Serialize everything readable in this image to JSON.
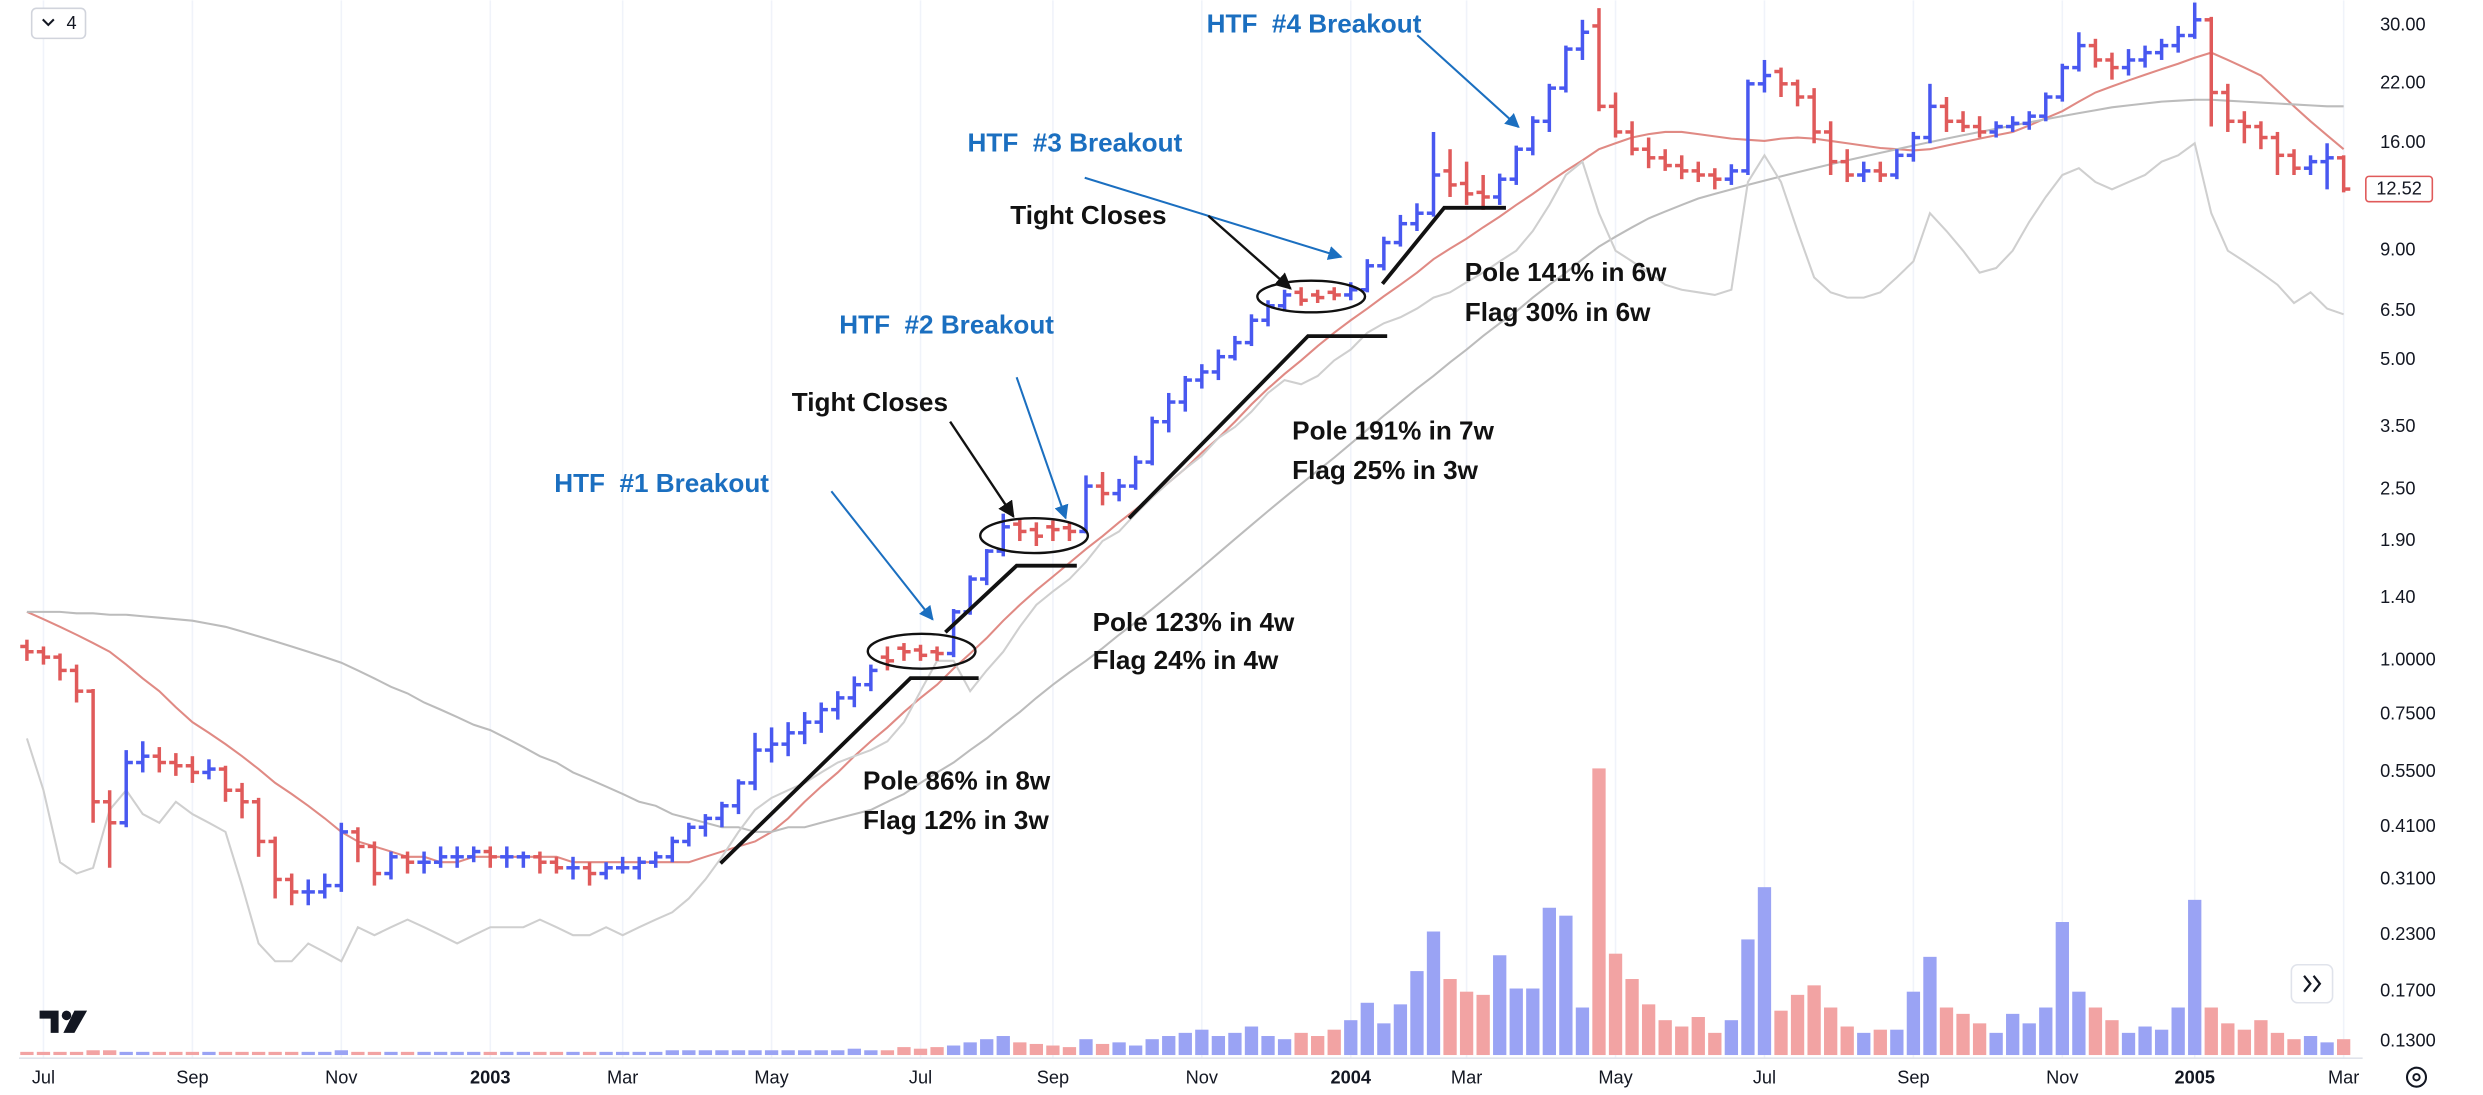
{
  "toolbar": {
    "interval": "4"
  },
  "chart_data": {
    "type": "ohlc",
    "categories": [
      null,
      "Jul",
      null,
      null,
      null,
      null,
      null,
      null,
      null,
      null,
      "Sep",
      null,
      null,
      null,
      null,
      null,
      null,
      null,
      null,
      "Nov",
      null,
      null,
      null,
      null,
      null,
      null,
      null,
      null,
      "2003",
      null,
      null,
      null,
      null,
      null,
      null,
      null,
      "Mar",
      null,
      null,
      null,
      null,
      null,
      null,
      null,
      null,
      "May",
      null,
      null,
      null,
      null,
      null,
      null,
      null,
      null,
      "Jul",
      null,
      null,
      null,
      null,
      null,
      null,
      null,
      "Sep",
      null,
      null,
      null,
      null,
      null,
      null,
      null,
      null,
      "Nov",
      null,
      null,
      null,
      null,
      null,
      null,
      null,
      null,
      "2004",
      null,
      null,
      null,
      null,
      null,
      null,
      "Mar",
      null,
      null,
      null,
      null,
      null,
      null,
      null,
      null,
      "May",
      null,
      null,
      null,
      null,
      null,
      null,
      null,
      null,
      "Jul",
      null,
      null,
      null,
      null,
      null,
      null,
      null,
      null,
      "Sep",
      null,
      null,
      null,
      null,
      null,
      null,
      null,
      null,
      "Nov",
      null,
      null,
      null,
      null,
      null,
      null,
      null,
      "2005",
      null,
      null,
      null,
      null,
      null,
      null,
      null,
      null,
      "Mar"
    ],
    "open": [
      1.08,
      1.05,
      1.02,
      0.95,
      0.85,
      0.47,
      0.42,
      0.58,
      0.6,
      0.58,
      0.57,
      0.55,
      0.56,
      0.5,
      0.47,
      0.38,
      0.31,
      0.29,
      0.29,
      0.3,
      0.4,
      0.37,
      0.32,
      0.35,
      0.34,
      0.34,
      0.35,
      0.35,
      0.36,
      0.35,
      0.35,
      0.35,
      0.34,
      0.33,
      0.33,
      0.32,
      0.33,
      0.33,
      0.34,
      0.35,
      0.38,
      0.41,
      0.43,
      0.46,
      0.52,
      0.62,
      0.64,
      0.68,
      0.72,
      0.77,
      0.82,
      0.88,
      1.02,
      1.07,
      1.06,
      1.05,
      1.04,
      1.3,
      1.55,
      1.8,
      2.08,
      2.02,
      2.05,
      2.04,
      2.0,
      2.55,
      2.45,
      2.55,
      2.9,
      3.6,
      4.0,
      4.5,
      4.7,
      5.1,
      5.5,
      6.2,
      6.7,
      7.2,
      7.1,
      7.2,
      7.1,
      7.3,
      8.3,
      9.4,
      10.4,
      11.0,
      13.8,
      12.9,
      12.3,
      12.0,
      13.2,
      15.5,
      18.0,
      21.5,
      26.5,
      30.0,
      19.5,
      17.0,
      15.5,
      14.8,
      14.2,
      13.8,
      13.5,
      13.2,
      13.8,
      22.0,
      23.5,
      22.0,
      20.5,
      17.0,
      14.5,
      13.5,
      13.8,
      13.5,
      15.0,
      16.5,
      19.5,
      18.0,
      17.5,
      17.0,
      17.5,
      17.8,
      18.5,
      20.5,
      24.0,
      27.0,
      25.0,
      24.0,
      25.0,
      26.0,
      27.0,
      28.5,
      31.0,
      21.0,
      18.0,
      17.5,
      16.5,
      15.0,
      14.0,
      14.5,
      14.8
    ],
    "high": [
      1.12,
      1.08,
      1.04,
      0.98,
      0.86,
      0.5,
      0.62,
      0.65,
      0.63,
      0.61,
      0.6,
      0.59,
      0.57,
      0.52,
      0.48,
      0.39,
      0.32,
      0.31,
      0.32,
      0.42,
      0.41,
      0.38,
      0.36,
      0.36,
      0.36,
      0.37,
      0.37,
      0.37,
      0.37,
      0.37,
      0.36,
      0.36,
      0.35,
      0.35,
      0.34,
      0.34,
      0.35,
      0.35,
      0.36,
      0.39,
      0.42,
      0.44,
      0.47,
      0.53,
      0.68,
      0.7,
      0.72,
      0.76,
      0.8,
      0.85,
      0.92,
      0.98,
      1.08,
      1.1,
      1.09,
      1.08,
      1.32,
      1.58,
      1.82,
      2.2,
      2.15,
      2.1,
      2.12,
      2.1,
      2.7,
      2.75,
      2.65,
      3.0,
      3.7,
      4.2,
      4.6,
      4.9,
      5.3,
      5.7,
      6.4,
      6.9,
      7.3,
      7.4,
      7.3,
      7.4,
      7.6,
      8.6,
      9.7,
      10.9,
      11.6,
      17.0,
      15.5,
      14.5,
      13.5,
      13.6,
      15.8,
      18.5,
      22.0,
      27.0,
      31.0,
      33.0,
      21.0,
      18.0,
      16.5,
      15.5,
      15.0,
      14.5,
      14.0,
      14.3,
      22.5,
      25.0,
      24.0,
      22.5,
      21.5,
      18.0,
      15.5,
      14.5,
      14.5,
      15.5,
      17.0,
      22.0,
      20.5,
      19.0,
      18.5,
      18.0,
      18.5,
      19.0,
      21.0,
      24.5,
      29.0,
      28.0,
      26.0,
      26.5,
      27.0,
      28.0,
      30.0,
      34.0,
      31.5,
      22.0,
      19.0,
      18.0,
      17.0,
      15.5,
      15.0,
      16.0,
      15.0
    ],
    "low": [
      1.0,
      0.98,
      0.9,
      0.8,
      0.42,
      0.33,
      0.41,
      0.55,
      0.55,
      0.54,
      0.52,
      0.53,
      0.47,
      0.43,
      0.35,
      0.28,
      0.27,
      0.27,
      0.28,
      0.29,
      0.34,
      0.3,
      0.31,
      0.32,
      0.32,
      0.33,
      0.33,
      0.34,
      0.33,
      0.33,
      0.33,
      0.32,
      0.32,
      0.31,
      0.3,
      0.31,
      0.32,
      0.31,
      0.33,
      0.34,
      0.37,
      0.39,
      0.41,
      0.44,
      0.5,
      0.58,
      0.6,
      0.64,
      0.68,
      0.73,
      0.78,
      0.85,
      0.95,
      1.0,
      1.0,
      1.0,
      1.02,
      1.28,
      1.5,
      1.75,
      1.9,
      1.85,
      1.9,
      1.9,
      1.98,
      2.3,
      2.35,
      2.5,
      2.85,
      3.4,
      3.8,
      4.3,
      4.5,
      5.0,
      5.4,
      6.0,
      6.5,
      6.7,
      6.8,
      6.9,
      6.9,
      7.2,
      8.1,
      9.2,
      10.0,
      10.8,
      12.0,
      11.5,
      11.2,
      11.5,
      12.8,
      15.0,
      17.0,
      21.0,
      25.0,
      19.0,
      16.5,
      15.0,
      14.0,
      13.8,
      13.2,
      13.0,
      12.5,
      12.8,
      13.5,
      21.0,
      20.5,
      19.5,
      16.0,
      13.5,
      13.0,
      13.0,
      13.0,
      13.2,
      14.5,
      16.0,
      17.0,
      17.0,
      16.5,
      16.5,
      17.0,
      17.2,
      18.0,
      20.0,
      23.5,
      24.0,
      22.5,
      23.0,
      24.0,
      25.0,
      26.0,
      28.0,
      17.5,
      17.0,
      16.0,
      15.5,
      13.5,
      13.5,
      13.5,
      12.5,
      12.3
    ],
    "close": [
      1.05,
      1.02,
      0.95,
      0.85,
      0.47,
      0.42,
      0.58,
      0.6,
      0.58,
      0.57,
      0.55,
      0.56,
      0.5,
      0.47,
      0.38,
      0.31,
      0.29,
      0.29,
      0.3,
      0.4,
      0.37,
      0.32,
      0.35,
      0.34,
      0.34,
      0.35,
      0.35,
      0.36,
      0.35,
      0.35,
      0.35,
      0.34,
      0.33,
      0.33,
      0.32,
      0.33,
      0.33,
      0.34,
      0.35,
      0.38,
      0.41,
      0.43,
      0.46,
      0.52,
      0.62,
      0.64,
      0.68,
      0.72,
      0.77,
      0.82,
      0.88,
      0.95,
      1.0,
      1.05,
      1.03,
      1.04,
      1.3,
      1.55,
      1.8,
      2.05,
      2.0,
      1.95,
      2.02,
      2.0,
      2.55,
      2.45,
      2.55,
      2.9,
      3.6,
      4.0,
      4.5,
      4.7,
      5.1,
      5.5,
      6.2,
      6.7,
      7.1,
      6.9,
      7.0,
      7.1,
      7.3,
      8.3,
      9.4,
      10.4,
      11.0,
      13.5,
      12.8,
      12.2,
      12.0,
      13.2,
      15.5,
      18.0,
      21.5,
      26.5,
      29.0,
      19.5,
      17.0,
      15.5,
      14.8,
      14.2,
      13.8,
      13.5,
      13.2,
      13.8,
      22.0,
      23.0,
      22.0,
      20.5,
      17.0,
      14.5,
      13.5,
      13.8,
      13.5,
      15.0,
      16.5,
      19.5,
      18.0,
      17.5,
      17.0,
      17.5,
      17.8,
      18.5,
      20.5,
      24.0,
      27.0,
      25.0,
      24.0,
      25.0,
      26.0,
      27.0,
      28.5,
      31.0,
      21.0,
      18.0,
      17.5,
      16.5,
      15.0,
      14.0,
      14.5,
      14.8,
      12.52
    ],
    "up_color": "#4858f0",
    "down_color": "#e05a5a",
    "ylim": [
      0.119,
      34.4
    ],
    "log_scale": true,
    "grid": "x",
    "yticks": [
      {
        "value": 30,
        "label": "30.00"
      },
      {
        "value": 22,
        "label": "22.00"
      },
      {
        "value": 16,
        "label": "16.00"
      },
      {
        "value": 9,
        "label": "9.00"
      },
      {
        "value": 6.5,
        "label": "6.50"
      },
      {
        "value": 5,
        "label": "5.00"
      },
      {
        "value": 3.5,
        "label": "3.50"
      },
      {
        "value": 2.5,
        "label": "2.50"
      },
      {
        "value": 1.9,
        "label": "1.90"
      },
      {
        "value": 1.4,
        "label": "1.40"
      },
      {
        "value": 1,
        "label": "1.0000"
      },
      {
        "value": 0.75,
        "label": "0.7500"
      },
      {
        "value": 0.55,
        "label": "0.5500"
      },
      {
        "value": 0.41,
        "label": "0.4100"
      },
      {
        "value": 0.31,
        "label": "0.3100"
      },
      {
        "value": 0.23,
        "label": "0.2300"
      },
      {
        "value": 0.17,
        "label": "0.1700"
      },
      {
        "value": 0.13,
        "label": "0.1300"
      }
    ],
    "series": [
      {
        "color": "#e08a84",
        "values": [
          1.3,
          1.25,
          1.2,
          1.15,
          1.1,
          1.05,
          0.98,
          0.91,
          0.85,
          0.78,
          0.72,
          0.68,
          0.64,
          0.6,
          0.56,
          0.52,
          0.49,
          0.46,
          0.43,
          0.4,
          0.38,
          0.37,
          0.36,
          0.35,
          0.35,
          0.34,
          0.34,
          0.35,
          0.35,
          0.35,
          0.35,
          0.35,
          0.35,
          0.34,
          0.34,
          0.34,
          0.34,
          0.34,
          0.34,
          0.34,
          0.34,
          0.35,
          0.36,
          0.37,
          0.38,
          0.4,
          0.43,
          0.47,
          0.51,
          0.55,
          0.6,
          0.65,
          0.7,
          0.76,
          0.82,
          0.88,
          0.96,
          1.04,
          1.13,
          1.24,
          1.35,
          1.46,
          1.57,
          1.69,
          1.82,
          1.95,
          2.1,
          2.25,
          2.42,
          2.6,
          2.8,
          3.05,
          3.3,
          3.6,
          3.95,
          4.3,
          4.65,
          5.0,
          5.4,
          5.8,
          6.2,
          6.6,
          7.05,
          7.5,
          8.0,
          8.6,
          9.1,
          9.6,
          10.2,
          10.8,
          11.5,
          12.2,
          13.0,
          13.8,
          14.6,
          15.5,
          16.0,
          16.5,
          16.8,
          17.0,
          17.0,
          16.8,
          16.6,
          16.4,
          16.3,
          16.2,
          16.4,
          16.5,
          16.4,
          16.2,
          16.0,
          15.8,
          15.6,
          15.5,
          15.4,
          15.5,
          15.8,
          16.1,
          16.4,
          16.7,
          17.0,
          17.6,
          18.3,
          19.0,
          20.0,
          21.0,
          21.7,
          22.4,
          23.1,
          23.8,
          24.5,
          25.3,
          26.0,
          25.0,
          24.0,
          23.0,
          21.2,
          19.5,
          18.0,
          16.7,
          15.5
        ]
      },
      {
        "color": "#bcbcbc",
        "values": [
          1.3,
          1.3,
          1.3,
          1.29,
          1.29,
          1.28,
          1.28,
          1.27,
          1.26,
          1.25,
          1.24,
          1.22,
          1.2,
          1.17,
          1.14,
          1.11,
          1.08,
          1.05,
          1.02,
          0.99,
          0.95,
          0.91,
          0.87,
          0.84,
          0.8,
          0.77,
          0.74,
          0.71,
          0.69,
          0.66,
          0.63,
          0.6,
          0.58,
          0.55,
          0.53,
          0.51,
          0.49,
          0.47,
          0.46,
          0.44,
          0.43,
          0.42,
          0.41,
          0.41,
          0.4,
          0.4,
          0.41,
          0.41,
          0.42,
          0.43,
          0.44,
          0.45,
          0.47,
          0.49,
          0.52,
          0.55,
          0.58,
          0.62,
          0.66,
          0.71,
          0.76,
          0.82,
          0.88,
          0.94,
          1.0,
          1.07,
          1.15,
          1.23,
          1.32,
          1.42,
          1.53,
          1.65,
          1.78,
          1.92,
          2.07,
          2.23,
          2.4,
          2.58,
          2.77,
          2.97,
          3.2,
          3.45,
          3.72,
          4.0,
          4.3,
          4.6,
          4.95,
          5.3,
          5.7,
          6.1,
          6.5,
          7.0,
          7.5,
          8.0,
          8.6,
          9.2,
          9.7,
          10.2,
          10.7,
          11.1,
          11.5,
          11.9,
          12.2,
          12.5,
          12.8,
          13.1,
          13.4,
          13.7,
          14.0,
          14.3,
          14.6,
          14.9,
          15.2,
          15.5,
          15.8,
          16.1,
          16.4,
          16.7,
          17.0,
          17.3,
          17.6,
          17.9,
          18.2,
          18.5,
          18.8,
          19.1,
          19.4,
          19.6,
          19.8,
          20.0,
          20.1,
          20.2,
          20.2,
          20.1,
          20.0,
          19.9,
          19.8,
          19.7,
          19.6,
          19.5,
          19.5
        ]
      },
      {
        "color": "#cfcfcf",
        "values": [
          0.66,
          0.5,
          0.34,
          0.32,
          0.33,
          0.45,
          0.5,
          0.44,
          0.42,
          0.47,
          0.44,
          0.42,
          0.4,
          0.3,
          0.22,
          0.2,
          0.2,
          0.22,
          0.21,
          0.2,
          0.24,
          0.23,
          0.24,
          0.25,
          0.24,
          0.23,
          0.22,
          0.23,
          0.24,
          0.24,
          0.24,
          0.25,
          0.24,
          0.23,
          0.23,
          0.24,
          0.23,
          0.24,
          0.25,
          0.26,
          0.28,
          0.31,
          0.35,
          0.4,
          0.45,
          0.48,
          0.5,
          0.52,
          0.55,
          0.58,
          0.6,
          0.62,
          0.65,
          0.72,
          0.85,
          1.0,
          1.0,
          0.85,
          0.95,
          1.05,
          1.2,
          1.35,
          1.45,
          1.55,
          1.7,
          1.9,
          2.0,
          2.2,
          2.4,
          2.6,
          2.8,
          3.0,
          3.3,
          3.5,
          3.8,
          4.2,
          4.5,
          4.4,
          4.6,
          5.0,
          5.3,
          5.8,
          6.1,
          6.3,
          6.6,
          7.0,
          7.2,
          7.6,
          8.0,
          8.5,
          9.0,
          10.0,
          11.5,
          13.5,
          14.5,
          11.0,
          9.0,
          8.5,
          8.0,
          7.5,
          7.3,
          7.2,
          7.1,
          7.3,
          13.0,
          15.0,
          13.0,
          10.0,
          7.8,
          7.2,
          7.0,
          7.0,
          7.2,
          7.8,
          8.5,
          11.0,
          10.0,
          9.0,
          8.0,
          8.2,
          9.0,
          10.5,
          12.0,
          13.5,
          14.0,
          13.0,
          12.5,
          13.0,
          13.5,
          14.5,
          15.0,
          16.0,
          11.0,
          9.0,
          8.5,
          8.0,
          7.5,
          6.8,
          7.2,
          6.6,
          6.4
        ]
      }
    ],
    "volume": {
      "vlim": [
        0,
        200
      ],
      "up_color": "#9aa3f4",
      "down_color": "#f2a3a3",
      "values": [
        2,
        2,
        2,
        2,
        3,
        3,
        2,
        2,
        2,
        2,
        2,
        2,
        2,
        2,
        2,
        2,
        2,
        2,
        2,
        3,
        2,
        2,
        2,
        2,
        2,
        2,
        2,
        2,
        2,
        2,
        2,
        2,
        2,
        2,
        2,
        2,
        2,
        2,
        2,
        3,
        3,
        3,
        3,
        3,
        3,
        3,
        3,
        3,
        3,
        3,
        4,
        3,
        3,
        5,
        4,
        5,
        6,
        8,
        10,
        12,
        8,
        7,
        6,
        5,
        10,
        7,
        8,
        6,
        10,
        12,
        14,
        16,
        12,
        14,
        18,
        12,
        10,
        14,
        12,
        16,
        22,
        33,
        20,
        32,
        53,
        78,
        48,
        40,
        38,
        63,
        42,
        42,
        93,
        88,
        30,
        181,
        64,
        48,
        32,
        22,
        18,
        24,
        14,
        22,
        73,
        106,
        28,
        38,
        44,
        30,
        18,
        14,
        16,
        16,
        40,
        62,
        30,
        26,
        20,
        14,
        26,
        20,
        30,
        84,
        40,
        30,
        22,
        14,
        18,
        16,
        30,
        98,
        30,
        20,
        16,
        22,
        14,
        10,
        12,
        8,
        10
      ]
    },
    "annotations": [
      {
        "text": "HTF  #1 Breakout",
        "color": "#1b6fc0"
      },
      {
        "text": "Tight Closes",
        "color": "#111111"
      },
      {
        "text": "HTF  #2 Breakout",
        "color": "#1b6fc0"
      },
      {
        "text": "HTF  #3 Breakout",
        "color": "#1b6fc0"
      },
      {
        "text": "Tight Closes",
        "color": "#111111"
      },
      {
        "text": "HTF  #4 Breakout",
        "color": "#1b6fc0"
      },
      {
        "text": "Pole 86% in 8w",
        "color": "#111111"
      },
      {
        "text": "Flag 12% in 3w",
        "color": "#111111"
      },
      {
        "text": "Pole 123% in 4w",
        "color": "#111111"
      },
      {
        "text": "Flag 24% in 4w",
        "color": "#111111"
      },
      {
        "text": "Pole 191% in 7w",
        "color": "#111111"
      },
      {
        "text": "Flag 25% in 3w",
        "color": "#111111"
      },
      {
        "text": "Pole 141% in 6w",
        "color": "#111111"
      },
      {
        "text": "Flag 30% in 6w",
        "color": "#111111"
      }
    ]
  }
}
